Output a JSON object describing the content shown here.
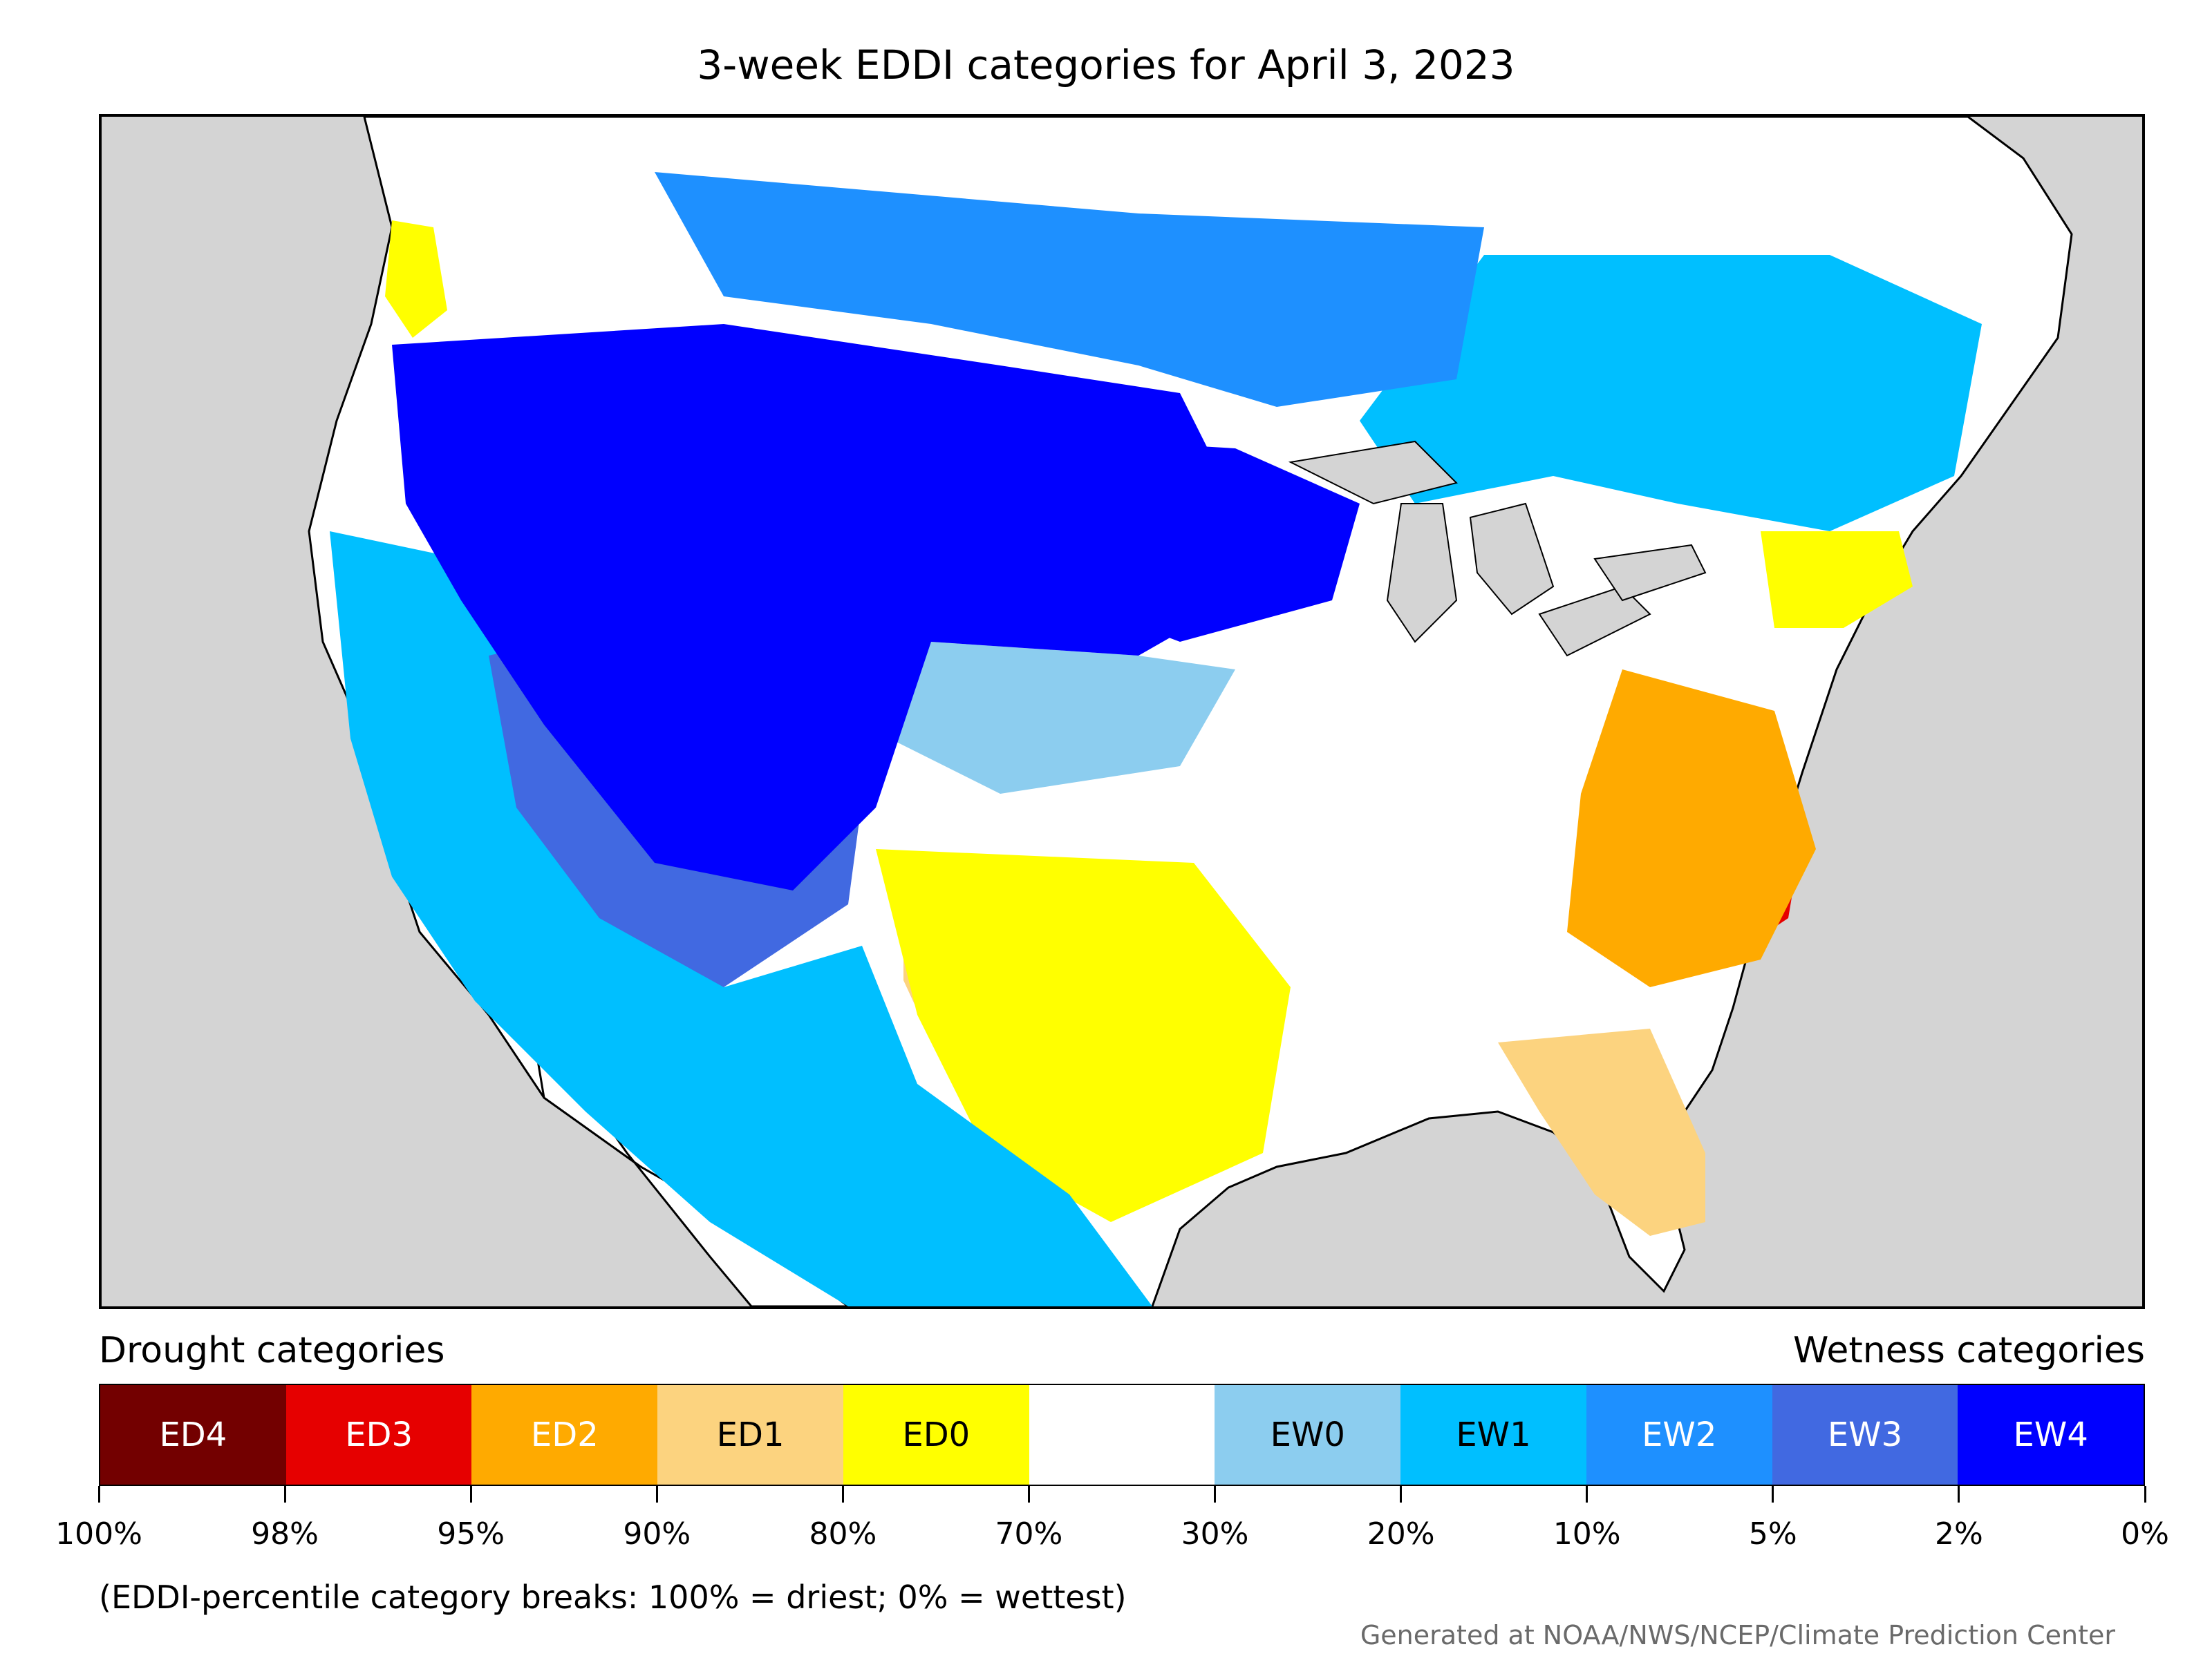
{
  "title": "3-week EDDI categories for April 3, 2023",
  "legend": {
    "drought_label": "Drought categories",
    "wetness_label": "Wetness categories",
    "categories": [
      {
        "label": "ED4",
        "color": "#730000",
        "text_color": "#ffffff"
      },
      {
        "label": "ED3",
        "color": "#e60000",
        "text_color": "#ffffff"
      },
      {
        "label": "ED2",
        "color": "#ffaa00",
        "text_color": "#ffffff"
      },
      {
        "label": "ED1",
        "color": "#fcd37f",
        "text_color": "#000000"
      },
      {
        "label": "ED0",
        "color": "#ffff00",
        "text_color": "#000000"
      },
      {
        "label": "",
        "color": "#ffffff",
        "text_color": "#000000"
      },
      {
        "label": "EW0",
        "color": "#8ccdef",
        "text_color": "#000000"
      },
      {
        "label": "EW1",
        "color": "#00bfff",
        "text_color": "#000000"
      },
      {
        "label": "EW2",
        "color": "#1e90ff",
        "text_color": "#ffffff"
      },
      {
        "label": "EW3",
        "color": "#4169e1",
        "text_color": "#ffffff"
      },
      {
        "label": "EW4",
        "color": "#0000ff",
        "text_color": "#ffffff"
      }
    ],
    "ticks": [
      "100%",
      "98%",
      "95%",
      "90%",
      "80%",
      "70%",
      "30%",
      "20%",
      "10%",
      "5%",
      "2%",
      "0%"
    ]
  },
  "footnote": "(EDDI-percentile category breaks: 100% = driest; 0% = wettest)",
  "credit": "Generated at NOAA/NWS/NCEP/Climate Prediction Center",
  "map": {
    "background_color": "#d4d4d4",
    "regions": [
      {
        "name": "northern-rockies-great-plains",
        "category": "EW4"
      },
      {
        "name": "great-basin",
        "category": "EW3"
      },
      {
        "name": "pacific-coast-southwest",
        "category": "EW1"
      },
      {
        "name": "canadian-prairies",
        "category": "EW2"
      },
      {
        "name": "upper-midwest",
        "category": "EW4"
      },
      {
        "name": "great-lakes-quebec",
        "category": "EW1"
      },
      {
        "name": "central-plains",
        "category": "EW0"
      },
      {
        "name": "midwest-south",
        "category": "none"
      },
      {
        "name": "oklahoma-texas",
        "category": "ED0"
      },
      {
        "name": "texas-panhandle",
        "category": "ED1"
      },
      {
        "name": "mid-atlantic",
        "category": "ED2"
      },
      {
        "name": "virginia-maryland-core",
        "category": "ED3"
      },
      {
        "name": "northern-florida",
        "category": "ED1"
      },
      {
        "name": "central-florida",
        "category": "ED3"
      },
      {
        "name": "new-england-coast",
        "category": "ED0"
      },
      {
        "name": "puget-sound",
        "category": "ED0"
      }
    ]
  }
}
